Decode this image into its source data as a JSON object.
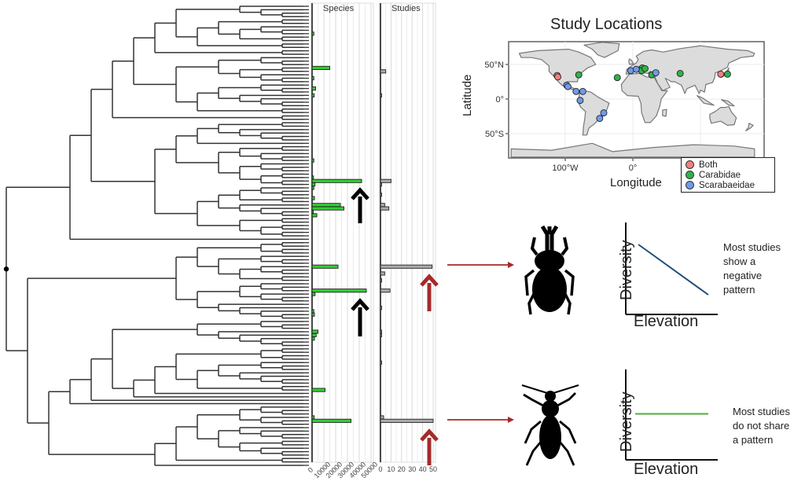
{
  "chart_data": [
    {
      "type": "bar",
      "title": "Species",
      "orientation": "horizontal",
      "tick_labels": [
        "0",
        "10000",
        "20000",
        "30000",
        "40000",
        "50000"
      ],
      "xlim": [
        0,
        50000
      ],
      "bars": [
        {
          "tip": 8,
          "value": 1500
        },
        {
          "tip": 18,
          "value": 15000
        },
        {
          "tip": 21,
          "value": 1500
        },
        {
          "tip": 24,
          "value": 3000
        },
        {
          "tip": 26,
          "value": 1800
        },
        {
          "tip": 45,
          "value": 1500
        },
        {
          "tip": 50,
          "value": 1200
        },
        {
          "tip": 51,
          "value": 42000
        },
        {
          "tip": 52,
          "value": 2500
        },
        {
          "tip": 53,
          "value": 1500
        },
        {
          "tip": 56,
          "value": 2000
        },
        {
          "tip": 58,
          "value": 24000
        },
        {
          "tip": 59,
          "value": 27000
        },
        {
          "tip": 60,
          "value": 1000
        },
        {
          "tip": 61,
          "value": 4000
        },
        {
          "tip": 76,
          "value": 22000
        },
        {
          "tip": 83,
          "value": 46000
        },
        {
          "tip": 84,
          "value": 2500
        },
        {
          "tip": 89,
          "value": 1500
        },
        {
          "tip": 90,
          "value": 2000
        },
        {
          "tip": 95,
          "value": 5000
        },
        {
          "tip": 96,
          "value": 3500
        },
        {
          "tip": 97,
          "value": 2000
        },
        {
          "tip": 112,
          "value": 11000
        },
        {
          "tip": 120,
          "value": 1800
        },
        {
          "tip": 121,
          "value": 33000
        }
      ]
    },
    {
      "type": "bar",
      "title": "Studies",
      "orientation": "horizontal",
      "tick_labels": [
        "0",
        "10",
        "20",
        "30",
        "40",
        "50"
      ],
      "xlim": [
        0,
        50
      ],
      "bars": [
        {
          "tip": 19,
          "value": 5
        },
        {
          "tip": 26,
          "value": 1
        },
        {
          "tip": 51,
          "value": 10
        },
        {
          "tip": 52,
          "value": 1
        },
        {
          "tip": 55,
          "value": 1
        },
        {
          "tip": 58,
          "value": 4
        },
        {
          "tip": 59,
          "value": 8
        },
        {
          "tip": 76,
          "value": 49
        },
        {
          "tip": 78,
          "value": 4
        },
        {
          "tip": 80,
          "value": 1
        },
        {
          "tip": 83,
          "value": 9
        },
        {
          "tip": 88,
          "value": 1
        },
        {
          "tip": 95,
          "value": 1
        },
        {
          "tip": 96,
          "value": 1
        },
        {
          "tip": 104,
          "value": 1
        },
        {
          "tip": 120,
          "value": 3
        },
        {
          "tip": 121,
          "value": 50
        }
      ]
    },
    {
      "type": "scatter",
      "title": "Study Locations",
      "xlabel": "Longitude",
      "ylabel": "Latitude",
      "xlim": [
        -180,
        180
      ],
      "ylim": [
        -85,
        85
      ],
      "x_ticks": [
        {
          "value": -100,
          "label": "100°W"
        },
        {
          "value": 0,
          "label": "0°"
        }
      ],
      "y_ticks": [
        {
          "value": 50,
          "label": "50°N"
        },
        {
          "value": 0,
          "label": "0°"
        },
        {
          "value": -50,
          "label": "50°S"
        }
      ],
      "legend_position": "bottom-right",
      "series": [
        {
          "name": "Both",
          "color": "#f08080",
          "points": [
            [
              -112,
              34
            ],
            [
              -111,
              32
            ],
            [
              130,
              36
            ]
          ]
        },
        {
          "name": "Carabidae",
          "color": "#2fb34a",
          "points": [
            [
              -80,
              35
            ],
            [
              -23,
              31
            ],
            [
              12,
              43
            ],
            [
              14,
              45
            ],
            [
              13,
              41
            ],
            [
              18,
              44
            ],
            [
              28,
              35
            ],
            [
              70,
              37
            ],
            [
              140,
              36
            ]
          ]
        },
        {
          "name": "Scarabaeidae",
          "color": "#6f9be8",
          "points": [
            [
              -98,
              20
            ],
            [
              -96,
              18
            ],
            [
              -84,
              11
            ],
            [
              -74,
              11
            ],
            [
              -78,
              -2
            ],
            [
              -43,
              -20
            ],
            [
              -49,
              -28
            ],
            [
              -3,
              41
            ],
            [
              5,
              43
            ],
            [
              34,
              38
            ]
          ]
        }
      ]
    },
    {
      "type": "line",
      "xlabel": "Elevation",
      "ylabel": "Diversity",
      "trend": "negative",
      "color": "#1f4e79",
      "note": "Most studies show a negative pattern"
    },
    {
      "type": "line",
      "xlabel": "Elevation",
      "ylabel": "Diversity",
      "trend": "flat",
      "color": "#4caf3a",
      "note": "Most studies do not share a pattern"
    }
  ],
  "labels": {
    "species_title": "Species",
    "studies_title": "Studies",
    "map_title": "Study Locations",
    "latitude": "Latitude",
    "longitude": "Longitude",
    "diversity": "Diversity",
    "elevation": "Elevation",
    "note_top": [
      "Most studies",
      "show a",
      "negative",
      "pattern"
    ],
    "note_bottom": [
      "Most studies",
      "do not share",
      "a pattern"
    ]
  },
  "highlighted_clades": [
    {
      "name": "Scarabaeidae",
      "tip": 76,
      "icon": "rhinoceros-beetle-icon",
      "pattern": "negative"
    },
    {
      "name": "Carabidae",
      "tip": 121,
      "icon": "ground-beetle-icon",
      "pattern": "none"
    }
  ],
  "colors": {
    "species_bar": "#33cc33",
    "studies_bar": "#aaaaaa",
    "arrow_black": "#000000",
    "arrow_red": "#a52a2a",
    "land": "#dcdcdc",
    "border": "#777777"
  },
  "tree": {
    "tip_count": 135
  }
}
